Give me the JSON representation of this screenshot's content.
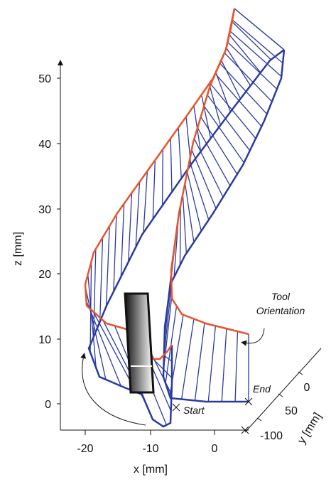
{
  "axes": {
    "z": {
      "label": "z [mm]",
      "ticks": [
        50,
        40,
        30,
        20,
        10,
        0
      ]
    },
    "x": {
      "label": "x [mm]",
      "ticks": [
        -20,
        -10,
        0
      ]
    },
    "y": {
      "label": "y [mm]",
      "ticks": [
        0,
        50,
        -100
      ]
    }
  },
  "annotations": {
    "tool_orientation": [
      "Tool",
      "Orientation"
    ],
    "start": "Start",
    "end": "End"
  }
}
